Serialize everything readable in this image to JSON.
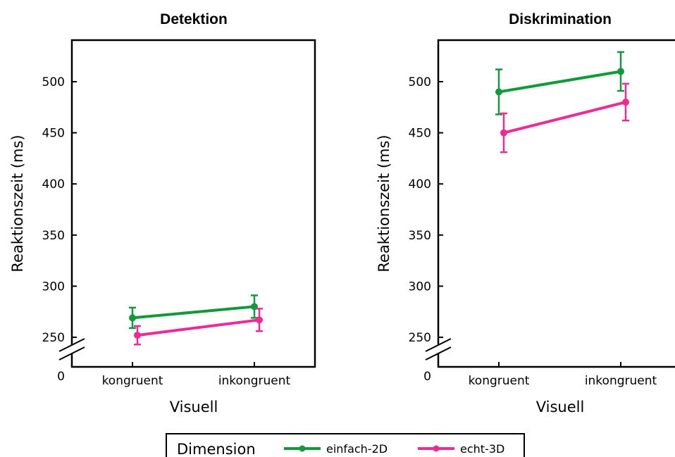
{
  "chart_data": [
    {
      "type": "line",
      "title": "Detektion",
      "xlabel": "Visuell",
      "ylabel": "Reaktionszeit (ms)",
      "categories": [
        "kongruent",
        "inkongruent"
      ],
      "yticks": [
        250,
        300,
        350,
        400,
        450,
        500
      ],
      "ybreak_label": "0",
      "ylim": [
        225,
        540
      ],
      "series": [
        {
          "name": "einfach-2D",
          "values": [
            269,
            280
          ],
          "errors": [
            10,
            11
          ]
        },
        {
          "name": "echt-3D",
          "values": [
            252,
            267
          ],
          "errors": [
            9,
            11
          ]
        }
      ]
    },
    {
      "type": "line",
      "title": "Diskrimination",
      "xlabel": "Visuell",
      "ylabel": "Reaktionszeit (ms)",
      "categories": [
        "kongruent",
        "inkongruent"
      ],
      "yticks": [
        250,
        300,
        350,
        400,
        450,
        500
      ],
      "ybreak_label": "0",
      "ylim": [
        225,
        540
      ],
      "series": [
        {
          "name": "einfach-2D",
          "values": [
            490,
            510
          ],
          "errors": [
            22,
            19
          ]
        },
        {
          "name": "echt-3D",
          "values": [
            450,
            480
          ],
          "errors": [
            19,
            18
          ]
        }
      ]
    }
  ],
  "legend": {
    "title": "Dimension",
    "placement": "bottom-center",
    "items": [
      {
        "label": "einfach-2D",
        "color": "#109a3a"
      },
      {
        "label": "echt-3D",
        "color": "#ee2a97"
      }
    ]
  },
  "colors": {
    "einfach-2D": "#109a3a",
    "echt-3D": "#ee2a97"
  }
}
